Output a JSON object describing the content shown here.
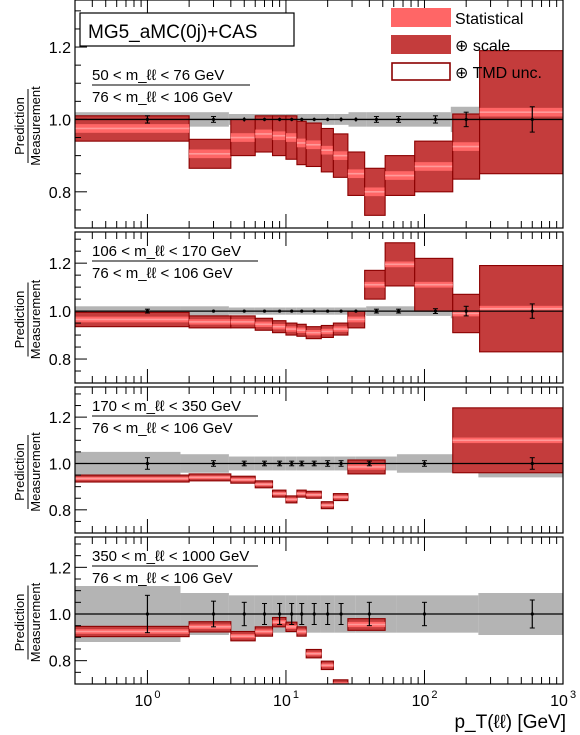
{
  "figure": {
    "generator": "MG5_aMC(0j)+CAS",
    "xlabel": "p_T(ℓℓ) [GeV]",
    "ylabel_top": "Prediction",
    "ylabel_bottom": "Measurement",
    "legend": {
      "statistical": "Statistical",
      "scale": "⊕ scale",
      "tmd": "⊕ TMD unc."
    },
    "colors": {
      "statistical": "#ff6666",
      "scale": "#c43c3c",
      "tmd_edge": "#8b0000",
      "central_line": "#ff9a9a",
      "measurement_band": "#b4b4b4"
    }
  },
  "chart_data": [
    {
      "type": "bar",
      "panel": 1,
      "label_numerator": "50 < m_ℓℓ < 76 GeV",
      "label_denominator": "76 < m_ℓℓ < 106 GeV",
      "xscale": "log",
      "xlim": [
        0.3,
        1000
      ],
      "ylim": [
        0.7,
        1.33
      ],
      "yticks": [
        0.8,
        1.0,
        1.2
      ],
      "bins": [
        {
          "x0": 0.3,
          "x1": 2.0,
          "center": 0.975,
          "half": 0.035
        },
        {
          "x0": 2.0,
          "x1": 4.0,
          "center": 0.905,
          "half": 0.04
        },
        {
          "x0": 4.0,
          "x1": 6.0,
          "center": 0.95,
          "half": 0.05
        },
        {
          "x0": 6.0,
          "x1": 8.0,
          "center": 0.96,
          "half": 0.05
        },
        {
          "x0": 8.0,
          "x1": 10.0,
          "center": 0.955,
          "half": 0.055
        },
        {
          "x0": 10.0,
          "x1": 12.0,
          "center": 0.95,
          "half": 0.06
        },
        {
          "x0": 12.0,
          "x1": 14.0,
          "center": 0.935,
          "half": 0.06
        },
        {
          "x0": 14.0,
          "x1": 18.0,
          "center": 0.93,
          "half": 0.06
        },
        {
          "x0": 18.0,
          "x1": 22.0,
          "center": 0.915,
          "half": 0.06
        },
        {
          "x0": 22.0,
          "x1": 28.0,
          "center": 0.9,
          "half": 0.06
        },
        {
          "x0": 28.0,
          "x1": 37.0,
          "center": 0.85,
          "half": 0.06
        },
        {
          "x0": 37.0,
          "x1": 52.0,
          "center": 0.8,
          "half": 0.065
        },
        {
          "x0": 52.0,
          "x1": 85.0,
          "center": 0.845,
          "half": 0.055
        },
        {
          "x0": 85.0,
          "x1": 160.0,
          "center": 0.87,
          "half": 0.07
        },
        {
          "x0": 160.0,
          "x1": 250.0,
          "center": 0.925,
          "half": 0.09
        },
        {
          "x0": 250.0,
          "x1": 1000.0,
          "center": 1.02,
          "half": 0.17
        }
      ],
      "measurement": {
        "x": [
          1.0,
          3.0,
          5.0,
          7.0,
          9.0,
          11.0,
          13.0,
          16.0,
          20.0,
          25.0,
          32.0,
          45.0,
          65.0,
          120.0,
          200.0,
          600.0
        ],
        "yerr": [
          0.01,
          0.008,
          0.006,
          0.005,
          0.005,
          0.005,
          0.005,
          0.005,
          0.005,
          0.006,
          0.006,
          0.008,
          0.008,
          0.01,
          0.02,
          0.035
        ],
        "band_half": [
          0.02,
          0.02,
          0.015,
          0.015,
          0.015,
          0.015,
          0.015,
          0.015,
          0.015,
          0.015,
          0.02,
          0.02,
          0.02,
          0.02,
          0.035,
          0.06
        ]
      }
    },
    {
      "type": "bar",
      "panel": 2,
      "label_numerator": "106 < m_ℓℓ < 170 GeV",
      "label_denominator": "76 < m_ℓℓ < 106 GeV",
      "xscale": "log",
      "xlim": [
        0.3,
        1000
      ],
      "ylim": [
        0.7,
        1.33
      ],
      "yticks": [
        0.8,
        1.0,
        1.2
      ],
      "bins": [
        {
          "x0": 0.3,
          "x1": 2.0,
          "center": 0.965,
          "half": 0.03
        },
        {
          "x0": 2.0,
          "x1": 4.0,
          "center": 0.955,
          "half": 0.025
        },
        {
          "x0": 4.0,
          "x1": 6.0,
          "center": 0.955,
          "half": 0.025
        },
        {
          "x0": 6.0,
          "x1": 8.0,
          "center": 0.945,
          "half": 0.025
        },
        {
          "x0": 8.0,
          "x1": 10.0,
          "center": 0.935,
          "half": 0.025
        },
        {
          "x0": 10.0,
          "x1": 12.0,
          "center": 0.925,
          "half": 0.025
        },
        {
          "x0": 12.0,
          "x1": 14.0,
          "center": 0.92,
          "half": 0.025
        },
        {
          "x0": 14.0,
          "x1": 18.0,
          "center": 0.91,
          "half": 0.025
        },
        {
          "x0": 18.0,
          "x1": 22.0,
          "center": 0.915,
          "half": 0.025
        },
        {
          "x0": 22.0,
          "x1": 28.0,
          "center": 0.925,
          "half": 0.025
        },
        {
          "x0": 28.0,
          "x1": 37.0,
          "center": 0.965,
          "half": 0.035
        },
        {
          "x0": 37.0,
          "x1": 52.0,
          "center": 1.11,
          "half": 0.06
        },
        {
          "x0": 52.0,
          "x1": 85.0,
          "center": 1.195,
          "half": 0.09
        },
        {
          "x0": 85.0,
          "x1": 160.0,
          "center": 1.11,
          "half": 0.11
        },
        {
          "x0": 160.0,
          "x1": 250.0,
          "center": 0.99,
          "half": 0.08
        },
        {
          "x0": 250.0,
          "x1": 1000.0,
          "center": 1.01,
          "half": 0.18
        }
      ],
      "measurement": {
        "x": [
          1.0,
          3.0,
          5.0,
          7.0,
          9.0,
          11.0,
          13.0,
          16.0,
          20.0,
          25.0,
          32.0,
          45.0,
          65.0,
          120.0,
          200.0,
          600.0
        ],
        "yerr": [
          0.008,
          0.006,
          0.005,
          0.005,
          0.005,
          0.005,
          0.005,
          0.005,
          0.005,
          0.005,
          0.006,
          0.008,
          0.008,
          0.01,
          0.02,
          0.03
        ],
        "band_half": [
          0.02,
          0.02,
          0.015,
          0.015,
          0.015,
          0.015,
          0.015,
          0.015,
          0.015,
          0.015,
          0.015,
          0.02,
          0.02,
          0.02,
          0.03,
          0.05
        ]
      }
    },
    {
      "type": "bar",
      "panel": 3,
      "label_numerator": "170 < m_ℓℓ < 350 GeV",
      "label_denominator": "76 < m_ℓℓ < 106 GeV",
      "xscale": "log",
      "xlim": [
        0.3,
        1000
      ],
      "ylim": [
        0.7,
        1.33
      ],
      "yticks": [
        0.8,
        1.0,
        1.2
      ],
      "bins": [
        {
          "x0": 0.3,
          "x1": 2.0,
          "center": 0.935,
          "half": 0.015
        },
        {
          "x0": 2.0,
          "x1": 4.0,
          "center": 0.94,
          "half": 0.015
        },
        {
          "x0": 4.0,
          "x1": 6.0,
          "center": 0.93,
          "half": 0.015
        },
        {
          "x0": 6.0,
          "x1": 8.0,
          "center": 0.91,
          "half": 0.015
        },
        {
          "x0": 8.0,
          "x1": 10.0,
          "center": 0.87,
          "half": 0.015
        },
        {
          "x0": 10.0,
          "x1": 12.0,
          "center": 0.845,
          "half": 0.015
        },
        {
          "x0": 12.0,
          "x1": 14.0,
          "center": 0.87,
          "half": 0.015
        },
        {
          "x0": 14.0,
          "x1": 18.0,
          "center": 0.865,
          "half": 0.015
        },
        {
          "x0": 18.0,
          "x1": 22.0,
          "center": 0.82,
          "half": 0.015
        },
        {
          "x0": 22.0,
          "x1": 28.0,
          "center": 0.855,
          "half": 0.015
        },
        {
          "x0": 28.0,
          "x1": 52.0,
          "center": 0.985,
          "half": 0.03
        },
        {
          "x0": 160.0,
          "x1": 1000.0,
          "center": 1.1,
          "half": 0.14
        }
      ],
      "measurement": {
        "x": [
          1.0,
          3.0,
          5.0,
          7.0,
          9.0,
          11.0,
          13.0,
          16.0,
          20.0,
          25.0,
          40.0,
          100.0,
          600.0
        ],
        "yerr": [
          0.025,
          0.012,
          0.01,
          0.01,
          0.01,
          0.01,
          0.01,
          0.01,
          0.012,
          0.012,
          0.01,
          0.012,
          0.025
        ],
        "band_half": [
          0.05,
          0.04,
          0.03,
          0.03,
          0.03,
          0.03,
          0.03,
          0.03,
          0.03,
          0.03,
          0.03,
          0.04,
          0.06
        ]
      }
    },
    {
      "type": "bar",
      "panel": 4,
      "label_numerator": "350 < m_ℓℓ < 1000 GeV",
      "label_denominator": "76 < m_ℓℓ < 106 GeV",
      "xscale": "log",
      "xlim": [
        0.3,
        1000
      ],
      "ylim": [
        0.7,
        1.33
      ],
      "yticks": [
        0.8,
        1.0,
        1.2
      ],
      "bins": [
        {
          "x0": 0.3,
          "x1": 2.0,
          "center": 0.925,
          "half": 0.022
        },
        {
          "x0": 2.0,
          "x1": 4.0,
          "center": 0.945,
          "half": 0.022
        },
        {
          "x0": 4.0,
          "x1": 6.0,
          "center": 0.905,
          "half": 0.02
        },
        {
          "x0": 6.0,
          "x1": 8.0,
          "center": 0.925,
          "half": 0.02
        },
        {
          "x0": 8.0,
          "x1": 10.0,
          "center": 0.965,
          "half": 0.02
        },
        {
          "x0": 10.0,
          "x1": 12.0,
          "center": 0.945,
          "half": 0.02
        },
        {
          "x0": 12.0,
          "x1": 14.0,
          "center": 0.925,
          "half": 0.02
        },
        {
          "x0": 14.0,
          "x1": 18.0,
          "center": 0.83,
          "half": 0.018
        },
        {
          "x0": 18.0,
          "x1": 22.0,
          "center": 0.78,
          "half": 0.018
        },
        {
          "x0": 22.0,
          "x1": 28.0,
          "center": 0.7,
          "half": 0.018
        },
        {
          "x0": 28.0,
          "x1": 52.0,
          "center": 0.955,
          "half": 0.025
        }
      ],
      "measurement": {
        "x": [
          1.0,
          3.0,
          5.0,
          7.0,
          9.0,
          11.0,
          13.0,
          16.0,
          20.0,
          25.0,
          40.0,
          100.0,
          600.0
        ],
        "yerr": [
          0.08,
          0.055,
          0.05,
          0.045,
          0.045,
          0.045,
          0.045,
          0.045,
          0.045,
          0.045,
          0.05,
          0.05,
          0.06
        ],
        "band_half": [
          0.12,
          0.09,
          0.08,
          0.08,
          0.08,
          0.08,
          0.08,
          0.08,
          0.08,
          0.08,
          0.08,
          0.08,
          0.09
        ]
      }
    }
  ]
}
